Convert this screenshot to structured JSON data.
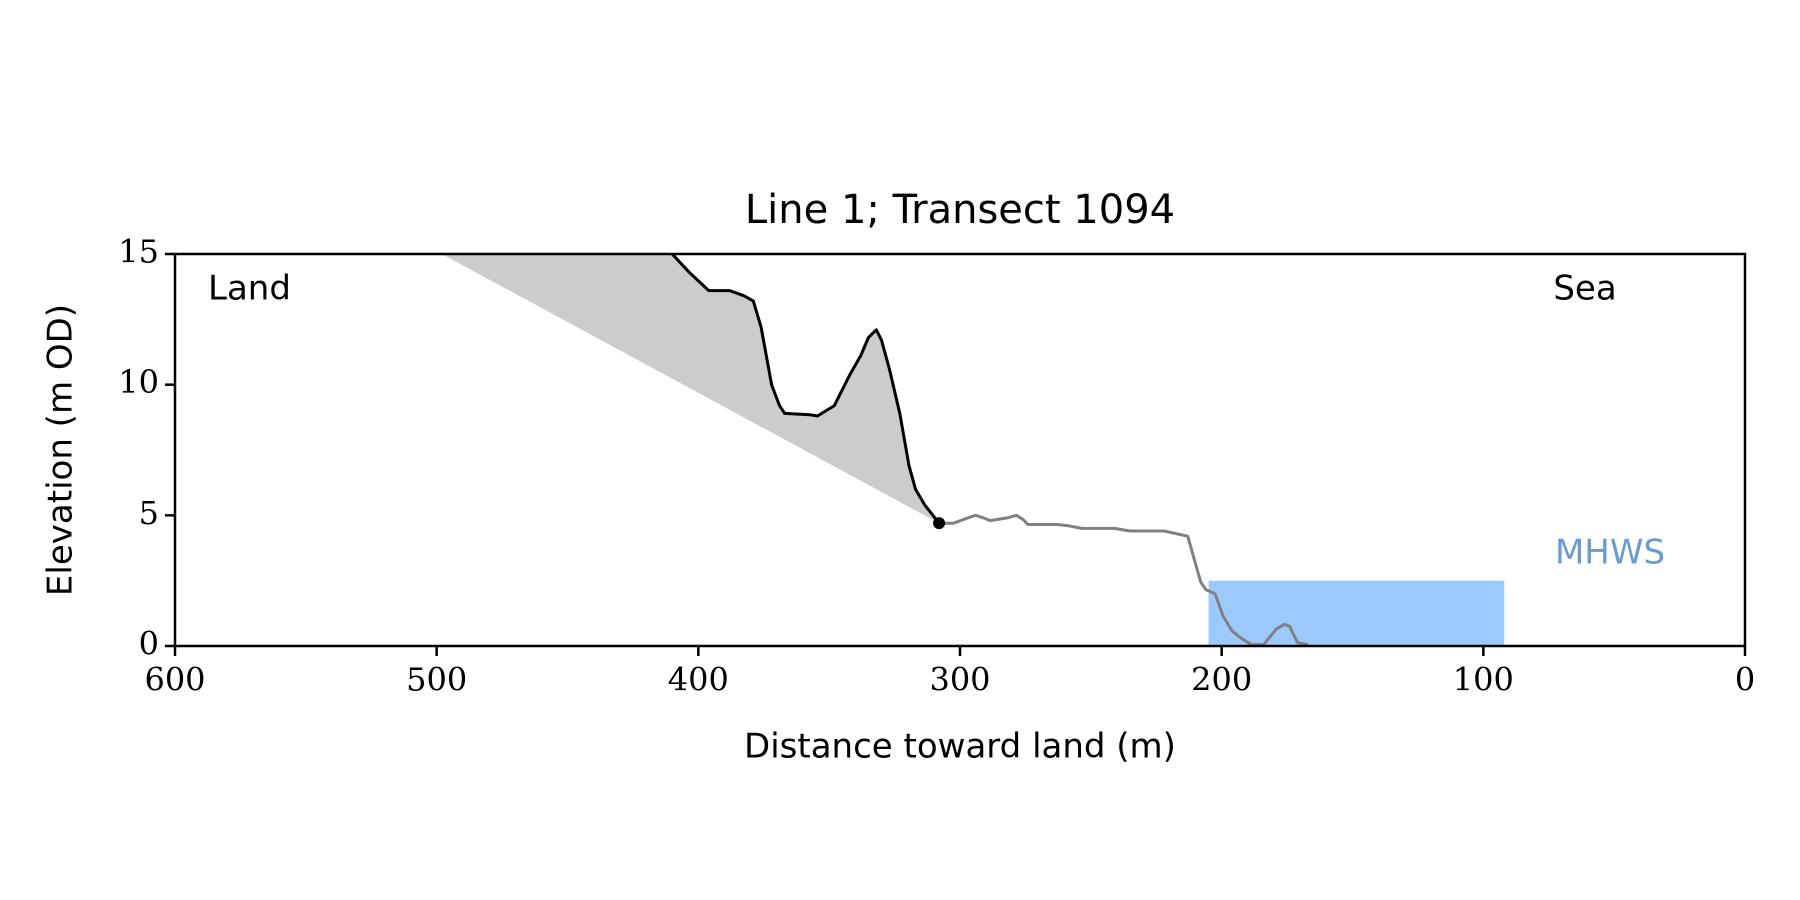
{
  "chart_data": {
    "type": "line",
    "title": "Line 1; Transect 1094",
    "x_label": "Distance toward land (m)",
    "y_label": "Elevation (m OD)",
    "xlim": [
      600,
      0
    ],
    "ylim": [
      0,
      15
    ],
    "xticks": [
      600,
      500,
      400,
      300,
      200,
      100,
      0
    ],
    "yticks": [
      0,
      5,
      10,
      15
    ],
    "grid": false,
    "annotations": {
      "left": "Land",
      "right": "Sea"
    },
    "series": [
      {
        "color": "#000000",
        "x": [
          410,
          403.5,
          396,
          394,
          388,
          382.5,
          379,
          376,
          372,
          369,
          367,
          357.5,
          354.5,
          348,
          346,
          342,
          338,
          335,
          332,
          330,
          327,
          323,
          319.5,
          317,
          313.5,
          308
        ],
        "values": [
          15,
          14.3,
          13.6,
          13.6,
          13.6,
          13.4,
          13.2,
          12.2,
          10.0,
          9.2,
          8.9,
          8.85,
          8.8,
          9.2,
          9.6,
          10.4,
          11.1,
          11.8,
          12.1,
          11.7,
          10.6,
          8.9,
          6.9,
          6.0,
          5.4,
          4.7
        ]
      },
      {
        "color": "#808080",
        "x": [
          308,
          302.5,
          297,
          294,
          291,
          288.5,
          282,
          278.5,
          276,
          274,
          263,
          258.5,
          253.5,
          250,
          241,
          235,
          231.5,
          222,
          213,
          208,
          206,
          202.5,
          199.5,
          196,
          192,
          188.5,
          184,
          179,
          176,
          174,
          171,
          167
        ],
        "values": [
          4.7,
          4.7,
          4.9,
          5.0,
          4.9,
          4.8,
          4.9,
          5.0,
          4.85,
          4.65,
          4.65,
          4.6,
          4.5,
          4.5,
          4.5,
          4.4,
          4.4,
          4.4,
          4.2,
          2.45,
          2.15,
          2.0,
          1.15,
          0.57,
          0.26,
          0.05,
          0.05,
          0.66,
          0.83,
          0.75,
          0.13,
          0.05
        ]
      }
    ],
    "slope_line": {
      "color": "#cccccc",
      "x": [
        498,
        308
      ],
      "y": [
        15,
        4.7
      ]
    },
    "cliff_toe": {
      "x": 308,
      "y": 4.7,
      "color": "#000000"
    },
    "mhws": {
      "label": "MHWS",
      "value": 2.5,
      "x": [
        205,
        92
      ],
      "color": "#9ccaff",
      "label_color": "#6a9ccf"
    }
  }
}
